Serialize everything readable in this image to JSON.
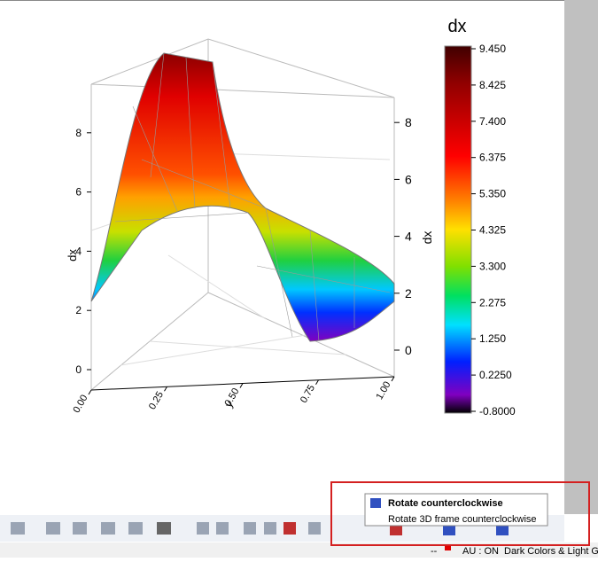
{
  "plot": {
    "colorbar": {
      "title": "dx",
      "ticks": [
        {
          "value": 9.45,
          "label": "9.450"
        },
        {
          "value": 8.425,
          "label": "8.425"
        },
        {
          "value": 7.4,
          "label": "7.400"
        },
        {
          "value": 6.375,
          "label": "6.375"
        },
        {
          "value": 5.35,
          "label": "5.350"
        },
        {
          "value": 4.325,
          "label": "4.325"
        },
        {
          "value": 3.3,
          "label": "3.300"
        },
        {
          "value": 2.275,
          "label": "2.275"
        },
        {
          "value": 1.25,
          "label": "1.250"
        },
        {
          "value": 0.225,
          "label": "0.2250"
        },
        {
          "value": -0.8,
          "label": "-0.8000"
        }
      ]
    },
    "z_axis_left": {
      "label": "dx",
      "ticks": [
        0,
        2,
        4,
        6,
        8
      ]
    },
    "z_axis_right": {
      "label": "dx",
      "ticks": [
        0,
        2,
        4,
        6,
        8
      ]
    },
    "x_axis": {
      "label": "y",
      "ticks": [
        {
          "value": 0,
          "label": "0.00"
        },
        {
          "value": 0.25,
          "label": "0.25"
        },
        {
          "value": 0.5,
          "label": "0.50"
        },
        {
          "value": 0.75,
          "label": "0.75"
        },
        {
          "value": 1,
          "label": "1.00"
        }
      ]
    }
  },
  "tooltip": {
    "title": "Rotate counterclockwise",
    "description": "Rotate 3D frame counterclockwise"
  },
  "status_bar": {
    "items": [
      "--",
      "AU : ON",
      "Dark Colors & Light G"
    ]
  }
}
